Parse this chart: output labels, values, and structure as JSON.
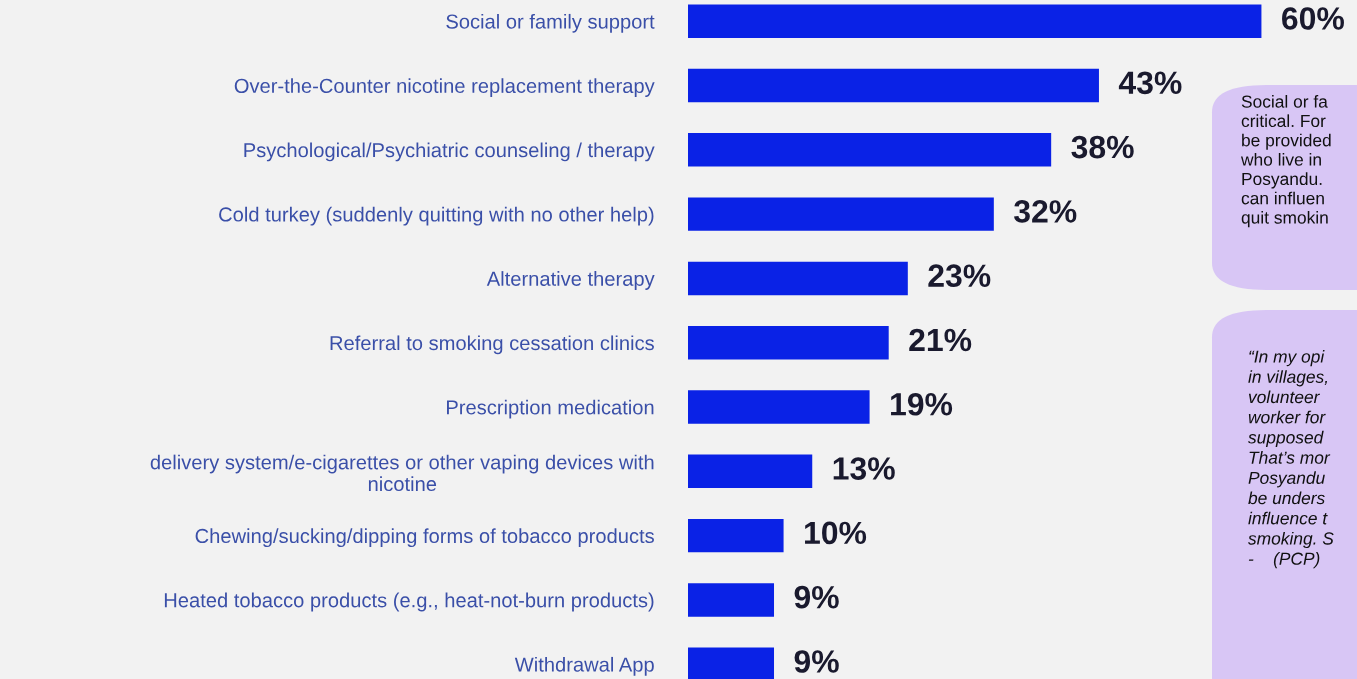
{
  "chart_data": {
    "type": "bar",
    "orientation": "horizontal",
    "categories": [
      "Social or family support",
      "Over-the-Counter nicotine replacement therapy",
      "Psychological/Psychiatric counseling / therapy",
      "Cold turkey (suddenly quitting with no other help)",
      "Alternative therapy",
      "Referral to smoking cessation clinics",
      "Prescription medication",
      "delivery system/e-cigarettes or other vaping devices with\nnicotine",
      "Chewing/sucking/dipping forms of tobacco products",
      "Heated tobacco products (e.g., heat-not-burn products)",
      "Withdrawal App"
    ],
    "values": [
      60,
      43,
      38,
      32,
      23,
      21,
      19,
      13,
      10,
      9,
      9
    ],
    "value_labels": [
      "60%",
      "43%",
      "38%",
      "32%",
      "23%",
      "21%",
      "19%",
      "13%",
      "10%",
      "9%",
      "9%"
    ],
    "color": "#0a22e6",
    "tick_labels": "y",
    "grid": false,
    "annotations": [
      "Social or fa\ncritical. For\nbe provided\nwho live in\nPosyandu.\ncan influen\nquit smokin",
      "“In my opi\nin villages,\nvolunteer\nworker for\nsupposed\nThat’s mor\nPosyandu\nbe unders\ninfluence t\nsmoking. S\n-    (PCP)"
    ]
  }
}
